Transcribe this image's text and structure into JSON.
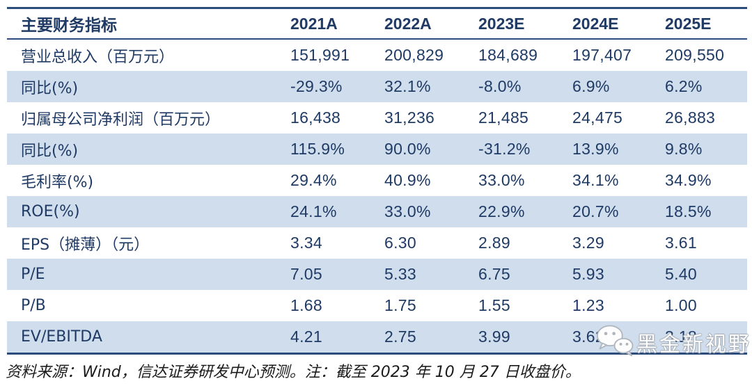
{
  "table": {
    "header": {
      "metric_label": "主要财务指标",
      "years": [
        "2021A",
        "2022A",
        "2023E",
        "2024E",
        "2025E"
      ]
    },
    "rows": [
      {
        "label": "营业总收入（百万元）",
        "values": [
          "151,991",
          "200,829",
          "184,689",
          "197,407",
          "209,550"
        ]
      },
      {
        "label": "同比(%)",
        "values": [
          "-29.3%",
          "32.1%",
          "-8.0%",
          "6.9%",
          "6.2%"
        ]
      },
      {
        "label": "归属母公司净利润（百万元）",
        "values": [
          "16,438",
          "31,236",
          "21,485",
          "24,475",
          "26,883"
        ]
      },
      {
        "label": "同比(%)",
        "values": [
          "115.9%",
          "90.0%",
          "-31.2%",
          "13.9%",
          "9.8%"
        ]
      },
      {
        "label": "毛利率(%)",
        "values": [
          "29.4%",
          "40.9%",
          "33.0%",
          "34.1%",
          "34.9%"
        ]
      },
      {
        "label": "ROE(%)",
        "values": [
          "24.1%",
          "33.0%",
          "22.9%",
          "20.7%",
          "18.5%"
        ]
      },
      {
        "label": "EPS（摊薄）（元）",
        "values": [
          "3.34",
          "6.30",
          "2.89",
          "3.29",
          "3.61"
        ]
      },
      {
        "label": "P/E",
        "values": [
          "7.05",
          "5.33",
          "6.75",
          "5.93",
          "5.40"
        ]
      },
      {
        "label": "P/B",
        "values": [
          "1.68",
          "1.75",
          "1.55",
          "1.23",
          "1.00"
        ]
      },
      {
        "label": "EV/EBITDA",
        "values": [
          "4.21",
          "2.75",
          "3.99",
          "3.62",
          "3.18"
        ]
      }
    ]
  },
  "footer": {
    "source_note": "资料来源：Wind，信达证券研发中心预测。注：截至 2023 年 10 月 27 日收盘价。"
  },
  "watermark": {
    "icon": "wechat-icon",
    "text": "黑金新视野"
  },
  "colors": {
    "text_navy": "#1f3a64",
    "line_navy": "#2c4c7c",
    "row_alt_blue": "#cfdded",
    "footer_text": "#1b1b1b",
    "watermark_text": "#ffffff"
  },
  "chart_data": {
    "type": "table",
    "title": "主要财务指标",
    "columns": [
      "主要财务指标",
      "2021A",
      "2022A",
      "2023E",
      "2024E",
      "2025E"
    ],
    "rows": [
      [
        "营业总收入（百万元）",
        "151,991",
        "200,829",
        "184,689",
        "197,407",
        "209,550"
      ],
      [
        "同比(%)",
        "-29.3%",
        "32.1%",
        "-8.0%",
        "6.9%",
        "6.2%"
      ],
      [
        "归属母公司净利润（百万元）",
        "16,438",
        "31,236",
        "21,485",
        "24,475",
        "26,883"
      ],
      [
        "同比(%)",
        "115.9%",
        "90.0%",
        "-31.2%",
        "13.9%",
        "9.8%"
      ],
      [
        "毛利率(%)",
        "29.4%",
        "40.9%",
        "33.0%",
        "34.1%",
        "34.9%"
      ],
      [
        "ROE(%)",
        "24.1%",
        "33.0%",
        "22.9%",
        "20.7%",
        "18.5%"
      ],
      [
        "EPS（摊薄）（元）",
        "3.34",
        "6.30",
        "2.89",
        "3.29",
        "3.61"
      ],
      [
        "P/E",
        "7.05",
        "5.33",
        "6.75",
        "5.93",
        "5.40"
      ],
      [
        "P/B",
        "1.68",
        "1.75",
        "1.55",
        "1.23",
        "1.00"
      ],
      [
        "EV/EBITDA",
        "4.21",
        "2.75",
        "3.99",
        "3.62",
        "3.18"
      ]
    ]
  }
}
